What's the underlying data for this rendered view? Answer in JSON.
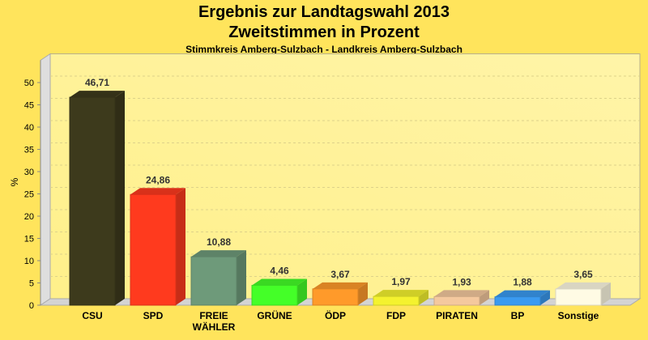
{
  "chart_data": {
    "type": "bar",
    "title": "Ergebnis zur Landtagswahl 2013",
    "subtitle": "Zweitstimmen in Prozent",
    "subsubtitle": "Stimmkreis Amberg-Sulzbach - Landkreis Amberg-Sulzbach",
    "xlabel": "",
    "ylabel": "%",
    "ylim": [
      0,
      50
    ],
    "yticks": [
      0,
      5,
      10,
      15,
      20,
      25,
      30,
      35,
      40,
      45,
      50
    ],
    "grid": true,
    "legend": "none",
    "categories": [
      "CSU",
      "SPD",
      "FREIE WÄHLER",
      "GRÜNE",
      "ÖDP",
      "FDP",
      "PIRATEN",
      "BP",
      "Sonstige"
    ],
    "values": [
      46.71,
      24.86,
      10.88,
      4.46,
      3.67,
      1.97,
      1.93,
      1.88,
      3.65
    ],
    "value_labels": [
      "46,71",
      "24,86",
      "10,88",
      "4,46",
      "3,67",
      "1,97",
      "1,93",
      "1,88",
      "3,65"
    ],
    "colors": [
      "#3d3a1c",
      "#ff3a1e",
      "#6e9a7a",
      "#44ff28",
      "#ff9a2a",
      "#f4f22e",
      "#f4c89e",
      "#3a9af0",
      "#fffbe4"
    ]
  }
}
